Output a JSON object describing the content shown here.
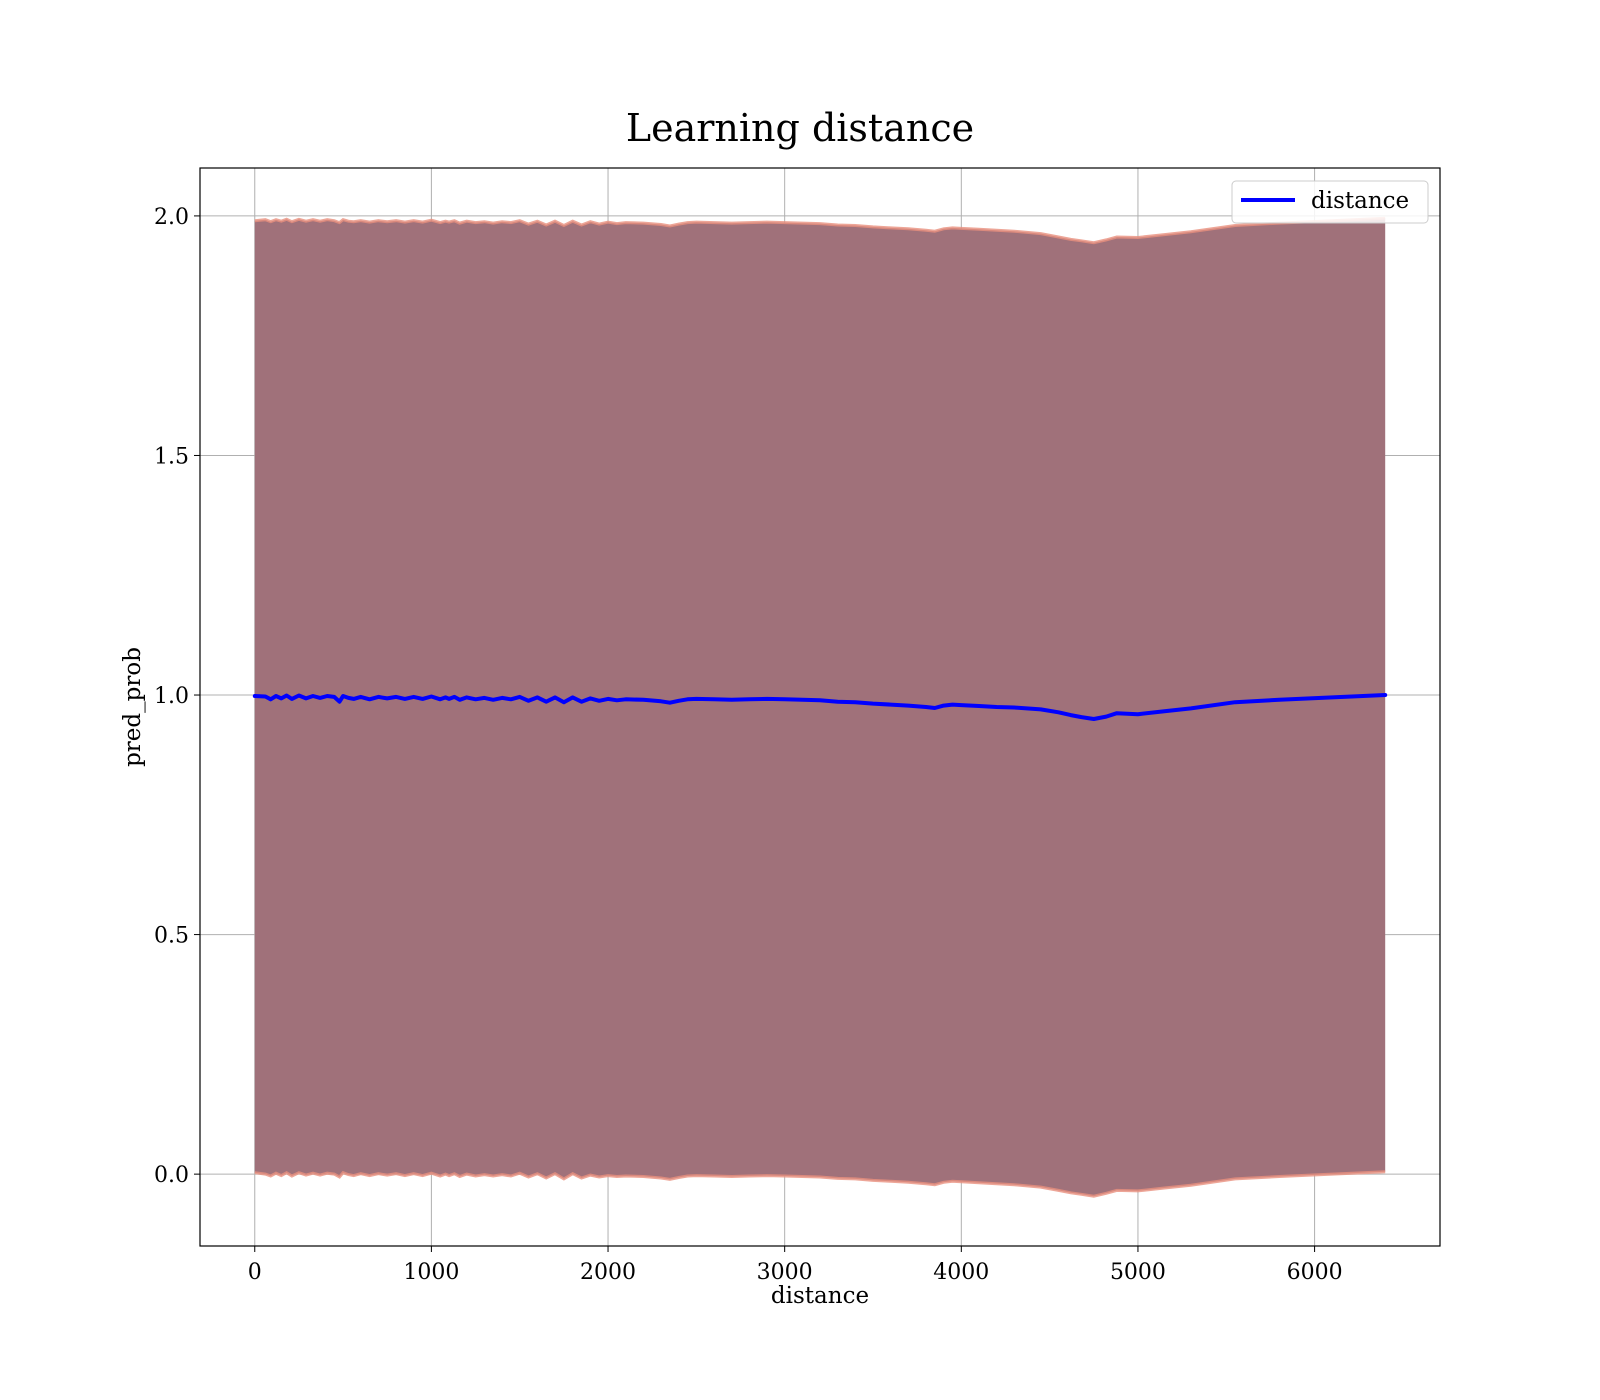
{
  "chart_data": {
    "type": "line",
    "title": "Learning distance",
    "xlabel": "distance",
    "ylabel": "pred_prob",
    "xlim": [
      -310,
      6710
    ],
    "ylim": [
      -0.15,
      2.1
    ],
    "xticks": [
      0,
      1000,
      2000,
      3000,
      4000,
      5000,
      6000
    ],
    "xtick_labels": [
      "0",
      "1000",
      "2000",
      "3000",
      "4000",
      "5000",
      "6000"
    ],
    "yticks": [
      0.0,
      0.5,
      1.0,
      1.5,
      2.0
    ],
    "ytick_labels": [
      "0.0",
      "0.5",
      "1.0",
      "1.5",
      "2.0"
    ],
    "grid": true,
    "legend_position": "top-right",
    "band_color": "#a0717a",
    "band_edge_color": "#e8907e",
    "line_color": "#0000ff",
    "series": [
      {
        "name": "distance",
        "x": [
          0,
          60,
          90,
          120,
          150,
          180,
          210,
          250,
          290,
          330,
          370,
          410,
          450,
          480,
          500,
          530,
          560,
          600,
          650,
          700,
          750,
          800,
          850,
          900,
          950,
          1000,
          1050,
          1080,
          1100,
          1130,
          1160,
          1200,
          1250,
          1300,
          1350,
          1400,
          1450,
          1500,
          1550,
          1600,
          1650,
          1700,
          1750,
          1800,
          1850,
          1900,
          1950,
          2000,
          2050,
          2100,
          2200,
          2300,
          2350,
          2400,
          2450,
          2500,
          2600,
          2700,
          2800,
          2900,
          3000,
          3100,
          3200,
          3300,
          3400,
          3500,
          3600,
          3700,
          3800,
          3850,
          3900,
          3950,
          4000,
          4100,
          4200,
          4300,
          4450,
          4550,
          4620,
          4680,
          4750,
          4820,
          4880,
          5000,
          5150,
          5300,
          5550,
          5800,
          6100,
          6400
        ],
        "values": [
          0.998,
          0.997,
          0.991,
          0.998,
          0.993,
          0.999,
          0.992,
          0.999,
          0.993,
          0.998,
          0.994,
          0.998,
          0.996,
          0.986,
          0.998,
          0.994,
          0.992,
          0.996,
          0.991,
          0.996,
          0.993,
          0.996,
          0.992,
          0.996,
          0.992,
          0.997,
          0.991,
          0.995,
          0.992,
          0.996,
          0.99,
          0.995,
          0.991,
          0.994,
          0.99,
          0.994,
          0.991,
          0.996,
          0.988,
          0.995,
          0.986,
          0.995,
          0.985,
          0.995,
          0.986,
          0.993,
          0.988,
          0.992,
          0.989,
          0.991,
          0.99,
          0.987,
          0.984,
          0.988,
          0.991,
          0.992,
          0.991,
          0.99,
          0.991,
          0.992,
          0.991,
          0.99,
          0.989,
          0.986,
          0.985,
          0.982,
          0.98,
          0.978,
          0.975,
          0.973,
          0.978,
          0.98,
          0.979,
          0.977,
          0.975,
          0.974,
          0.97,
          0.964,
          0.958,
          0.954,
          0.95,
          0.955,
          0.962,
          0.96,
          0.966,
          0.972,
          0.985,
          0.99,
          0.995,
          1.0
        ]
      }
    ],
    "band": {
      "upper": [
        1.99,
        1.992,
        1.988,
        1.992,
        1.989,
        1.993,
        1.988,
        1.993,
        1.989,
        1.992,
        1.989,
        1.992,
        1.99,
        1.986,
        1.992,
        1.989,
        1.988,
        1.99,
        1.987,
        1.99,
        1.988,
        1.99,
        1.987,
        1.99,
        1.987,
        1.991,
        1.986,
        1.989,
        1.987,
        1.99,
        1.985,
        1.989,
        1.986,
        1.988,
        1.985,
        1.988,
        1.986,
        1.99,
        1.983,
        1.989,
        1.981,
        1.989,
        1.98,
        1.989,
        1.981,
        1.988,
        1.983,
        1.987,
        1.984,
        1.986,
        1.985,
        1.982,
        1.979,
        1.983,
        1.986,
        1.987,
        1.986,
        1.985,
        1.986,
        1.987,
        1.986,
        1.985,
        1.984,
        1.981,
        1.98,
        1.977,
        1.975,
        1.973,
        1.97,
        1.968,
        1.973,
        1.975,
        1.974,
        1.972,
        1.97,
        1.968,
        1.963,
        1.956,
        1.951,
        1.948,
        1.944,
        1.95,
        1.956,
        1.955,
        1.961,
        1.967,
        1.98,
        1.985,
        1.99,
        1.995
      ],
      "lower": [
        0.003,
        0.0,
        -0.004,
        0.002,
        -0.003,
        0.003,
        -0.004,
        0.003,
        -0.002,
        0.002,
        -0.002,
        0.002,
        0.0,
        -0.006,
        0.003,
        -0.001,
        -0.003,
        0.001,
        -0.003,
        0.001,
        -0.002,
        0.001,
        -0.003,
        0.001,
        -0.003,
        0.002,
        -0.004,
        0.0,
        -0.003,
        0.001,
        -0.005,
        0.0,
        -0.004,
        -0.001,
        -0.004,
        -0.001,
        -0.004,
        0.002,
        -0.006,
        0.001,
        -0.008,
        0.001,
        -0.01,
        0.001,
        -0.008,
        -0.002,
        -0.006,
        -0.003,
        -0.005,
        -0.004,
        -0.005,
        -0.008,
        -0.011,
        -0.007,
        -0.004,
        -0.003,
        -0.004,
        -0.005,
        -0.004,
        -0.003,
        -0.004,
        -0.005,
        -0.006,
        -0.009,
        -0.01,
        -0.013,
        -0.015,
        -0.017,
        -0.02,
        -0.022,
        -0.017,
        -0.015,
        -0.016,
        -0.018,
        -0.02,
        -0.022,
        -0.027,
        -0.034,
        -0.039,
        -0.042,
        -0.046,
        -0.04,
        -0.034,
        -0.035,
        -0.029,
        -0.023,
        -0.01,
        -0.005,
        0.0,
        0.005
      ]
    }
  }
}
